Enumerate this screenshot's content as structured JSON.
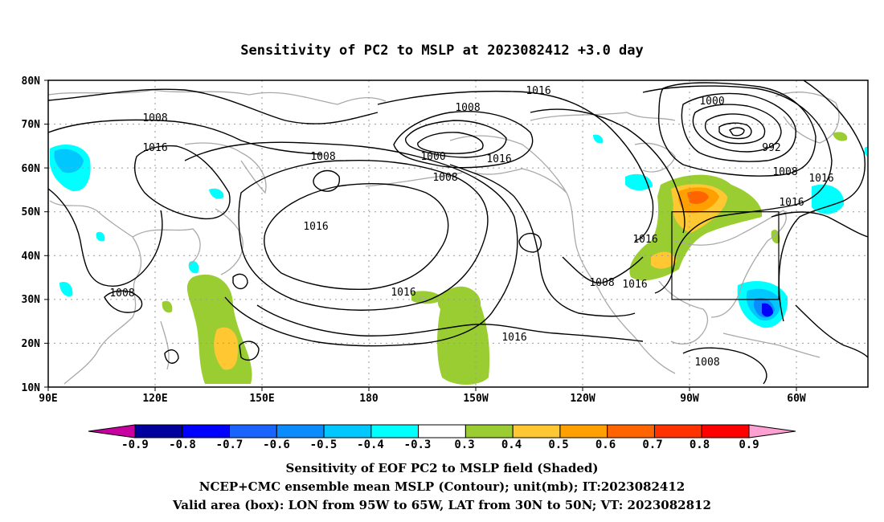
{
  "title": "Sensitivity of PC2 to MSLP at 2023082412 +3.0 day",
  "map": {
    "lat_labels": [
      "80N",
      "70N",
      "60N",
      "50N",
      "40N",
      "30N",
      "20N",
      "10N"
    ],
    "lon_labels": [
      "90E",
      "120E",
      "150E",
      "180",
      "150W",
      "120W",
      "90W",
      "60W"
    ],
    "contour_labels": [
      "1016",
      "1008",
      "1000",
      "992",
      "1008",
      "1016",
      "1016",
      "1016",
      "1008",
      "1008",
      "1000",
      "1008",
      "1016",
      "1016",
      "1016",
      "1008",
      "1016",
      "1016",
      "1016",
      "1008",
      "1008",
      "1016"
    ],
    "box": {
      "lon": [
        -95,
        -65
      ],
      "lat": [
        30,
        50
      ]
    }
  },
  "colorbar": {
    "labels": [
      "-0.9",
      "-0.8",
      "-0.7",
      "-0.6",
      "-0.5",
      "-0.4",
      "-0.3",
      "0.3",
      "0.4",
      "0.5",
      "0.6",
      "0.7",
      "0.8",
      "0.9"
    ],
    "colors": [
      "#00009e",
      "#0000ff",
      "#1964ff",
      "#0a8cff",
      "#00c8ff",
      "#00ffff",
      "#ffffff",
      "#9acd32",
      "#ffc832",
      "#ffa000",
      "#ff6400",
      "#ff3200",
      "#ff0000"
    ],
    "low_end_color": "#c800a0",
    "high_end_color": "#ffa0d2"
  },
  "captions": {
    "line1": "Sensitivity of EOF PC2 to MSLP field (Shaded)",
    "line2": "NCEP+CMC ensemble mean MSLP (Contour); unit(mb); IT:2023082412",
    "line3": "Valid area (box): LON from 95W to 65W, LAT from 30N to 50N; VT: 2023082812"
  }
}
